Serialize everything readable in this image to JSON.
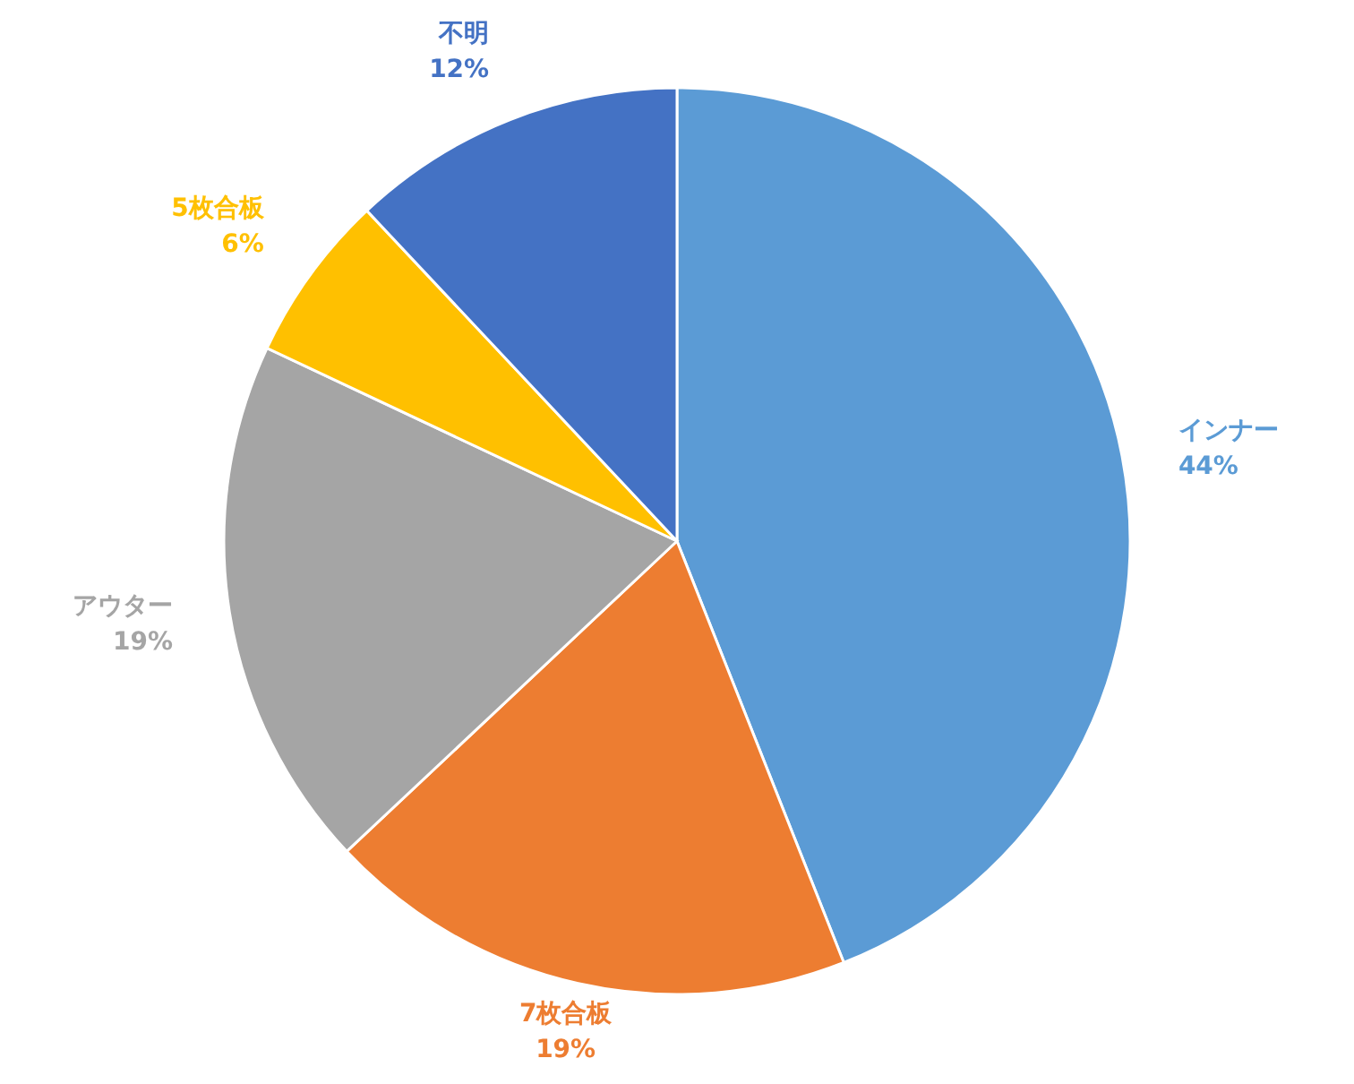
{
  "chart_data": {
    "type": "pie",
    "categories": [
      "インナー",
      "7枚合板",
      "アウター",
      "5枚合板",
      "不明"
    ],
    "values": [
      44,
      19,
      19,
      6,
      12
    ],
    "colors": [
      "#5b9bd5",
      "#ed7d31",
      "#a5a5a5",
      "#ffc000",
      "#4472c4"
    ],
    "value_labels": [
      "44%",
      "19%",
      "19%",
      "6%",
      "12%"
    ]
  }
}
